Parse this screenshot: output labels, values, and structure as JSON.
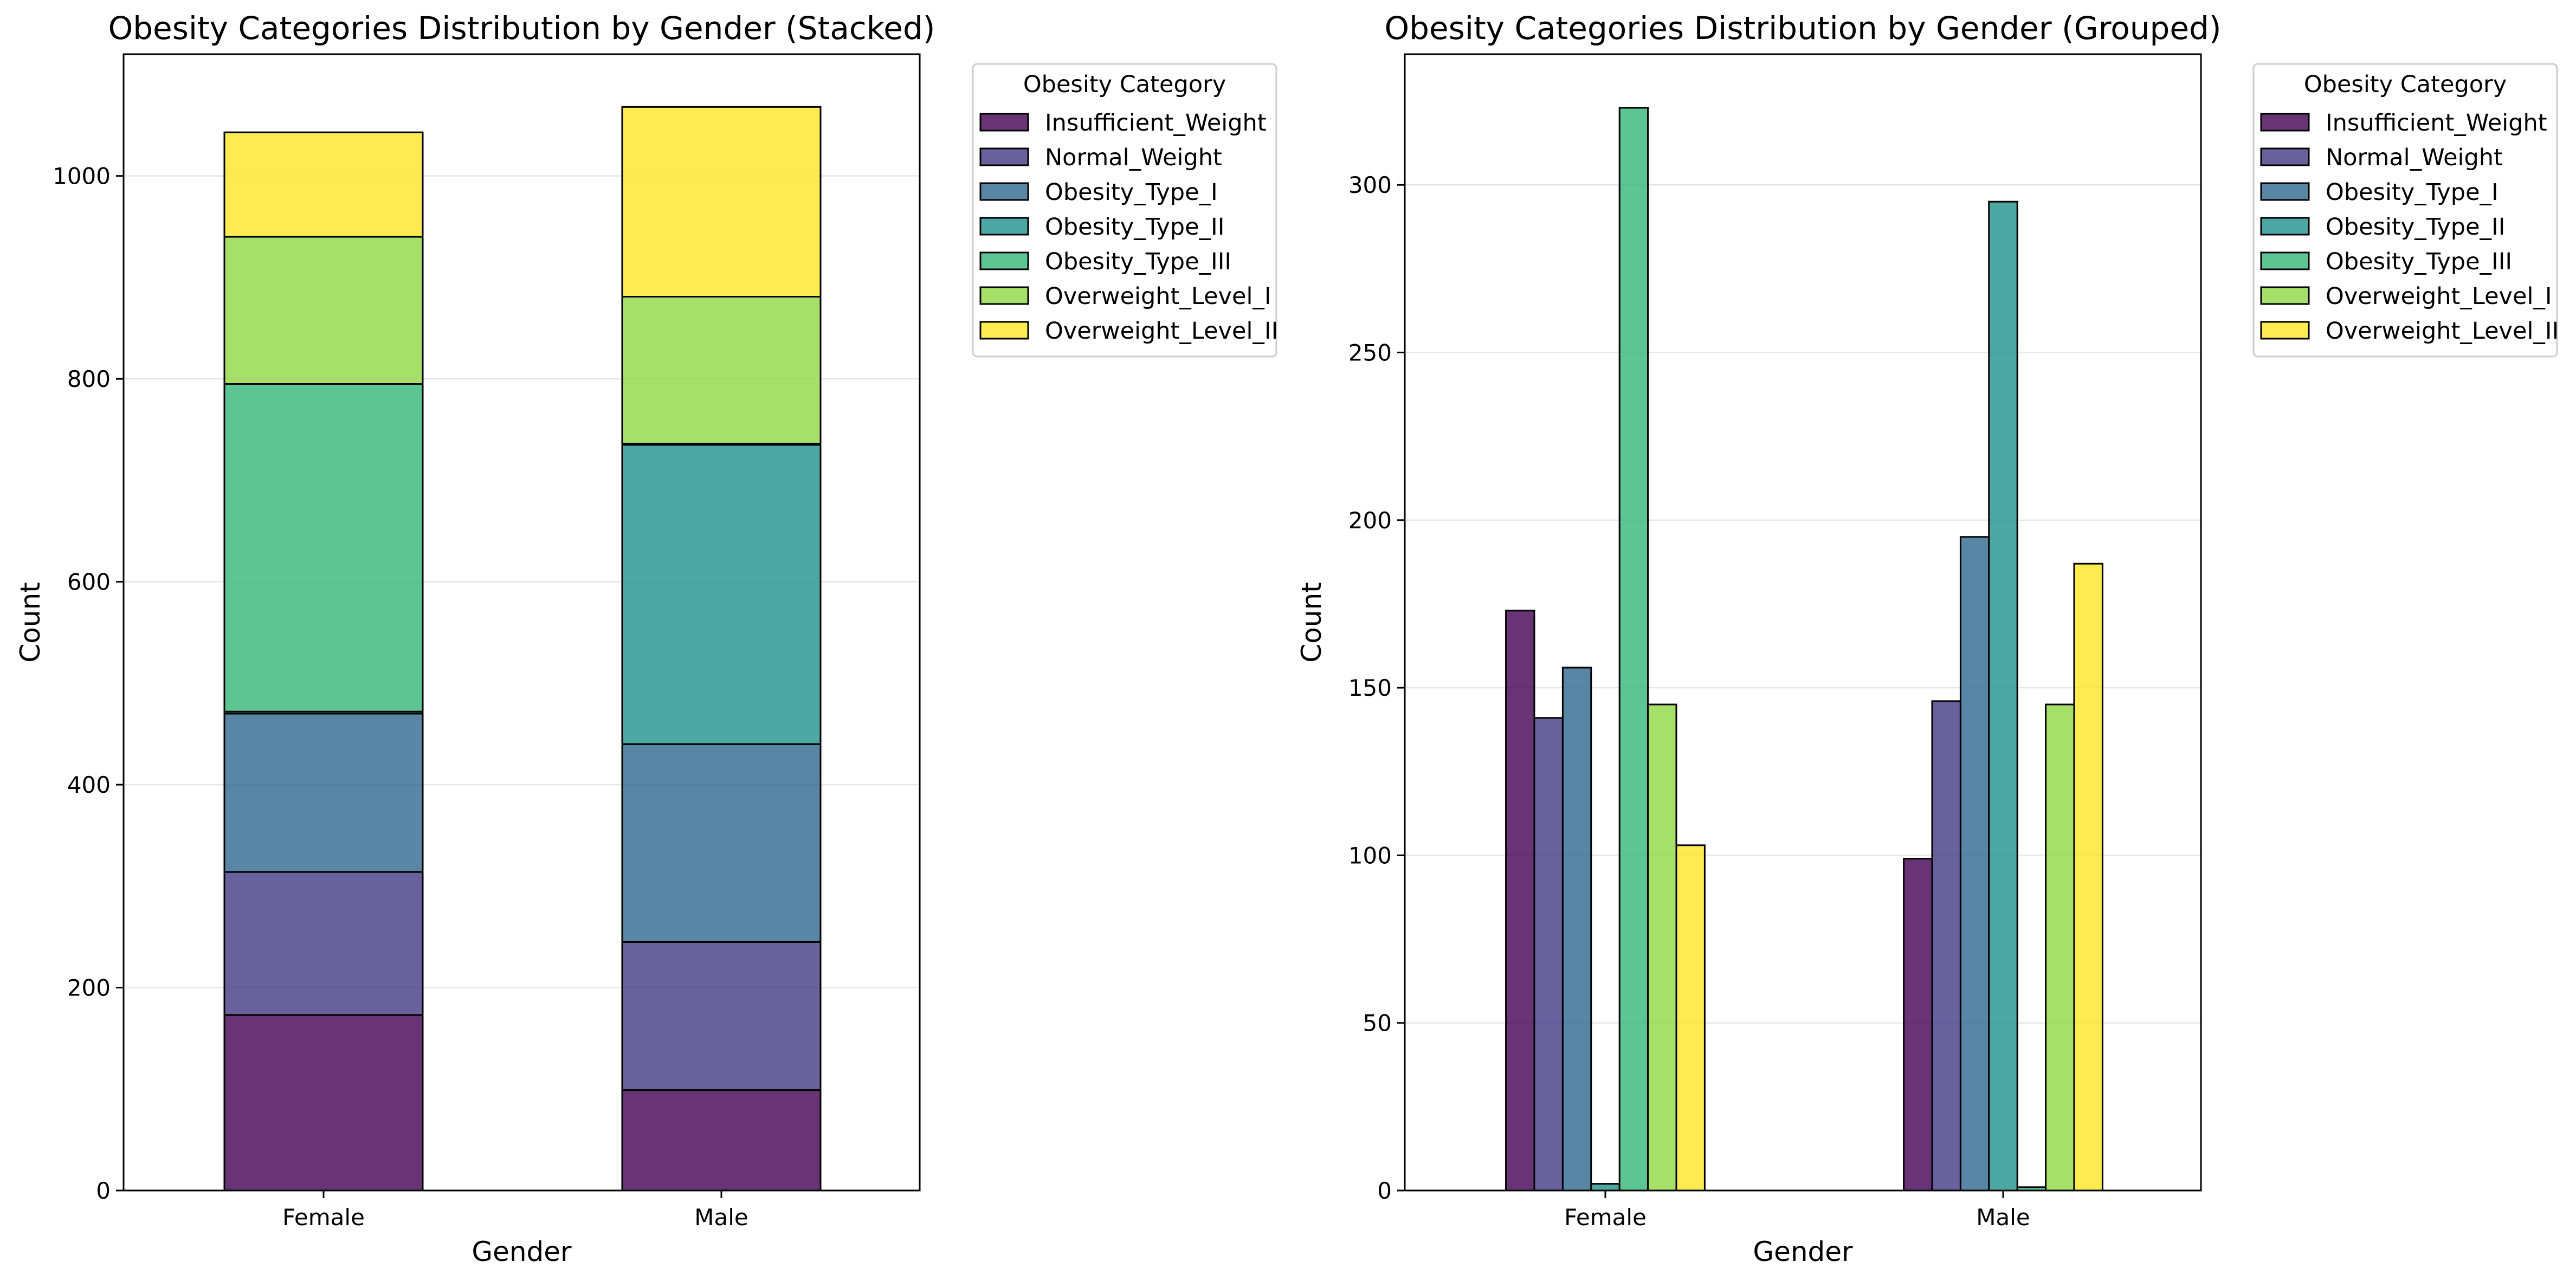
{
  "colors": {
    "Insufficient_Weight": "#440154",
    "Normal_Weight": "#443983",
    "Obesity_Type_I": "#31688e",
    "Obesity_Type_II": "#21918c",
    "Obesity_Type_III": "#35b779",
    "Overweight_Level_I": "#90d743",
    "Overweight_Level_II": "#fde725"
  },
  "chart_data": [
    {
      "type": "bar",
      "stacked": true,
      "title": "Obesity Categories Distribution by Gender (Stacked)",
      "xlabel": "Gender",
      "ylabel": "Count",
      "categories": [
        "Female",
        "Male"
      ],
      "ylim": [
        0,
        1120
      ],
      "yticks": [
        0,
        200,
        400,
        600,
        800,
        1000
      ],
      "grid": "y",
      "legend": {
        "title": "Obesity Category",
        "position": "outside-top-right"
      },
      "series": [
        {
          "name": "Insufficient_Weight",
          "values": [
            173,
            99
          ]
        },
        {
          "name": "Normal_Weight",
          "values": [
            141,
            146
          ]
        },
        {
          "name": "Obesity_Type_I",
          "values": [
            156,
            195
          ]
        },
        {
          "name": "Obesity_Type_II",
          "values": [
            2,
            295
          ]
        },
        {
          "name": "Obesity_Type_III",
          "values": [
            323,
            1
          ]
        },
        {
          "name": "Overweight_Level_I",
          "values": [
            145,
            145
          ]
        },
        {
          "name": "Overweight_Level_II",
          "values": [
            103,
            187
          ]
        }
      ]
    },
    {
      "type": "bar",
      "stacked": false,
      "title": "Obesity Categories Distribution by Gender (Grouped)",
      "xlabel": "Gender",
      "ylabel": "Count",
      "categories": [
        "Female",
        "Male"
      ],
      "ylim": [
        0,
        339
      ],
      "yticks": [
        0,
        50,
        100,
        150,
        200,
        250,
        300
      ],
      "grid": "y",
      "legend": {
        "title": "Obesity Category",
        "position": "outside-top-right"
      },
      "series": [
        {
          "name": "Insufficient_Weight",
          "values": [
            173,
            99
          ]
        },
        {
          "name": "Normal_Weight",
          "values": [
            141,
            146
          ]
        },
        {
          "name": "Obesity_Type_I",
          "values": [
            156,
            195
          ]
        },
        {
          "name": "Obesity_Type_II",
          "values": [
            2,
            295
          ]
        },
        {
          "name": "Obesity_Type_III",
          "values": [
            323,
            1
          ]
        },
        {
          "name": "Overweight_Level_I",
          "values": [
            145,
            145
          ]
        },
        {
          "name": "Overweight_Level_II",
          "values": [
            103,
            187
          ]
        }
      ]
    }
  ]
}
